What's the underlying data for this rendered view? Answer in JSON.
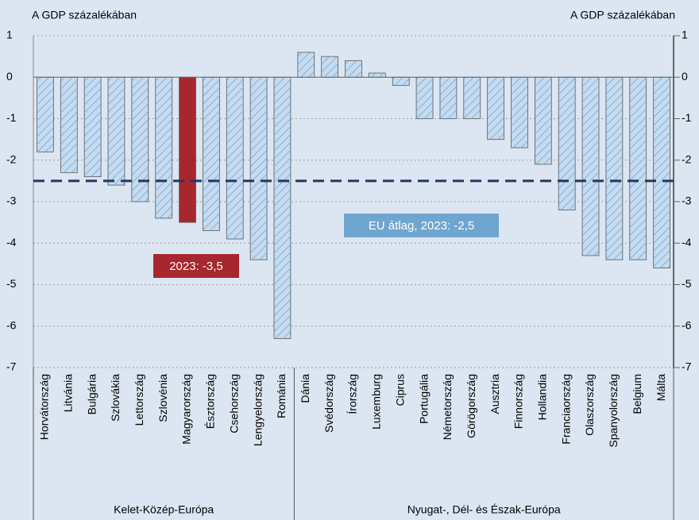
{
  "chart_data": {
    "type": "bar",
    "y_axis_label": "A GDP százalékában",
    "y2_axis_label": "A GDP százalékában",
    "categories": [
      "Horvátország",
      "Litvánia",
      "Bulgária",
      "Szlovákia",
      "Lettország",
      "Szlovénia",
      "Magyarország",
      "Észtország",
      "Csehország",
      "Lengyelország",
      "Románia",
      "Dánia",
      "Svédország",
      "Írország",
      "Luxemburg",
      "Ciprus",
      "Portugália",
      "Németország",
      "Görögország",
      "Ausztria",
      "Finnország",
      "Hollandia",
      "Franciaország",
      "Olaszország",
      "Spanyolország",
      "Belgium",
      "Málta"
    ],
    "values": [
      -1.8,
      -2.3,
      -2.4,
      -2.6,
      -3.0,
      -3.4,
      -3.5,
      -3.7,
      -3.9,
      -4.4,
      -6.3,
      0.6,
      0.5,
      0.4,
      0.1,
      -0.2,
      -1.0,
      -1.0,
      -1.0,
      -1.5,
      -1.7,
      -2.1,
      -3.2,
      -4.3,
      -4.4,
      -4.4,
      -4.6
    ],
    "color": "#c6dbf0",
    "colors": [
      "#c6dbf0",
      "#c6dbf0",
      "#c6dbf0",
      "#c6dbf0",
      "#c6dbf0",
      "#c6dbf0",
      "#a6272d",
      "#c6dbf0",
      "#c6dbf0",
      "#c6dbf0",
      "#c6dbf0",
      "#c6dbf0",
      "#c6dbf0",
      "#c6dbf0",
      "#c6dbf0",
      "#c6dbf0",
      "#c6dbf0",
      "#c6dbf0",
      "#c6dbf0",
      "#c6dbf0",
      "#c6dbf0",
      "#c6dbf0",
      "#c6dbf0",
      "#c6dbf0",
      "#c6dbf0",
      "#c6dbf0",
      "#c6dbf0"
    ],
    "ylim": [
      -7,
      1
    ],
    "yticks": [
      1,
      0,
      -1,
      -2,
      -3,
      -4,
      -5,
      -6,
      -7
    ],
    "y2lim": [
      -7,
      1
    ],
    "y2ticks": [
      1,
      0,
      -1,
      -2,
      -3,
      -4,
      -5,
      -6,
      -7
    ],
    "grid": true,
    "reference_lines": [
      {
        "value": -2.5,
        "color": "#1f3864"
      }
    ],
    "annotations": [
      {
        "text": "EU átlag, 2023: -2,5",
        "color": "#6fa6cf"
      },
      {
        "text": "2023: -3,5",
        "color": "#a6272d"
      }
    ],
    "groups": [
      {
        "label": "Kelet-Közép-Európa",
        "from": "Horvátország",
        "to": "Románia"
      },
      {
        "label": "Nyugat-, Dél- és Észak-Európa",
        "from": "Dánia",
        "to": "Málta"
      }
    ]
  }
}
